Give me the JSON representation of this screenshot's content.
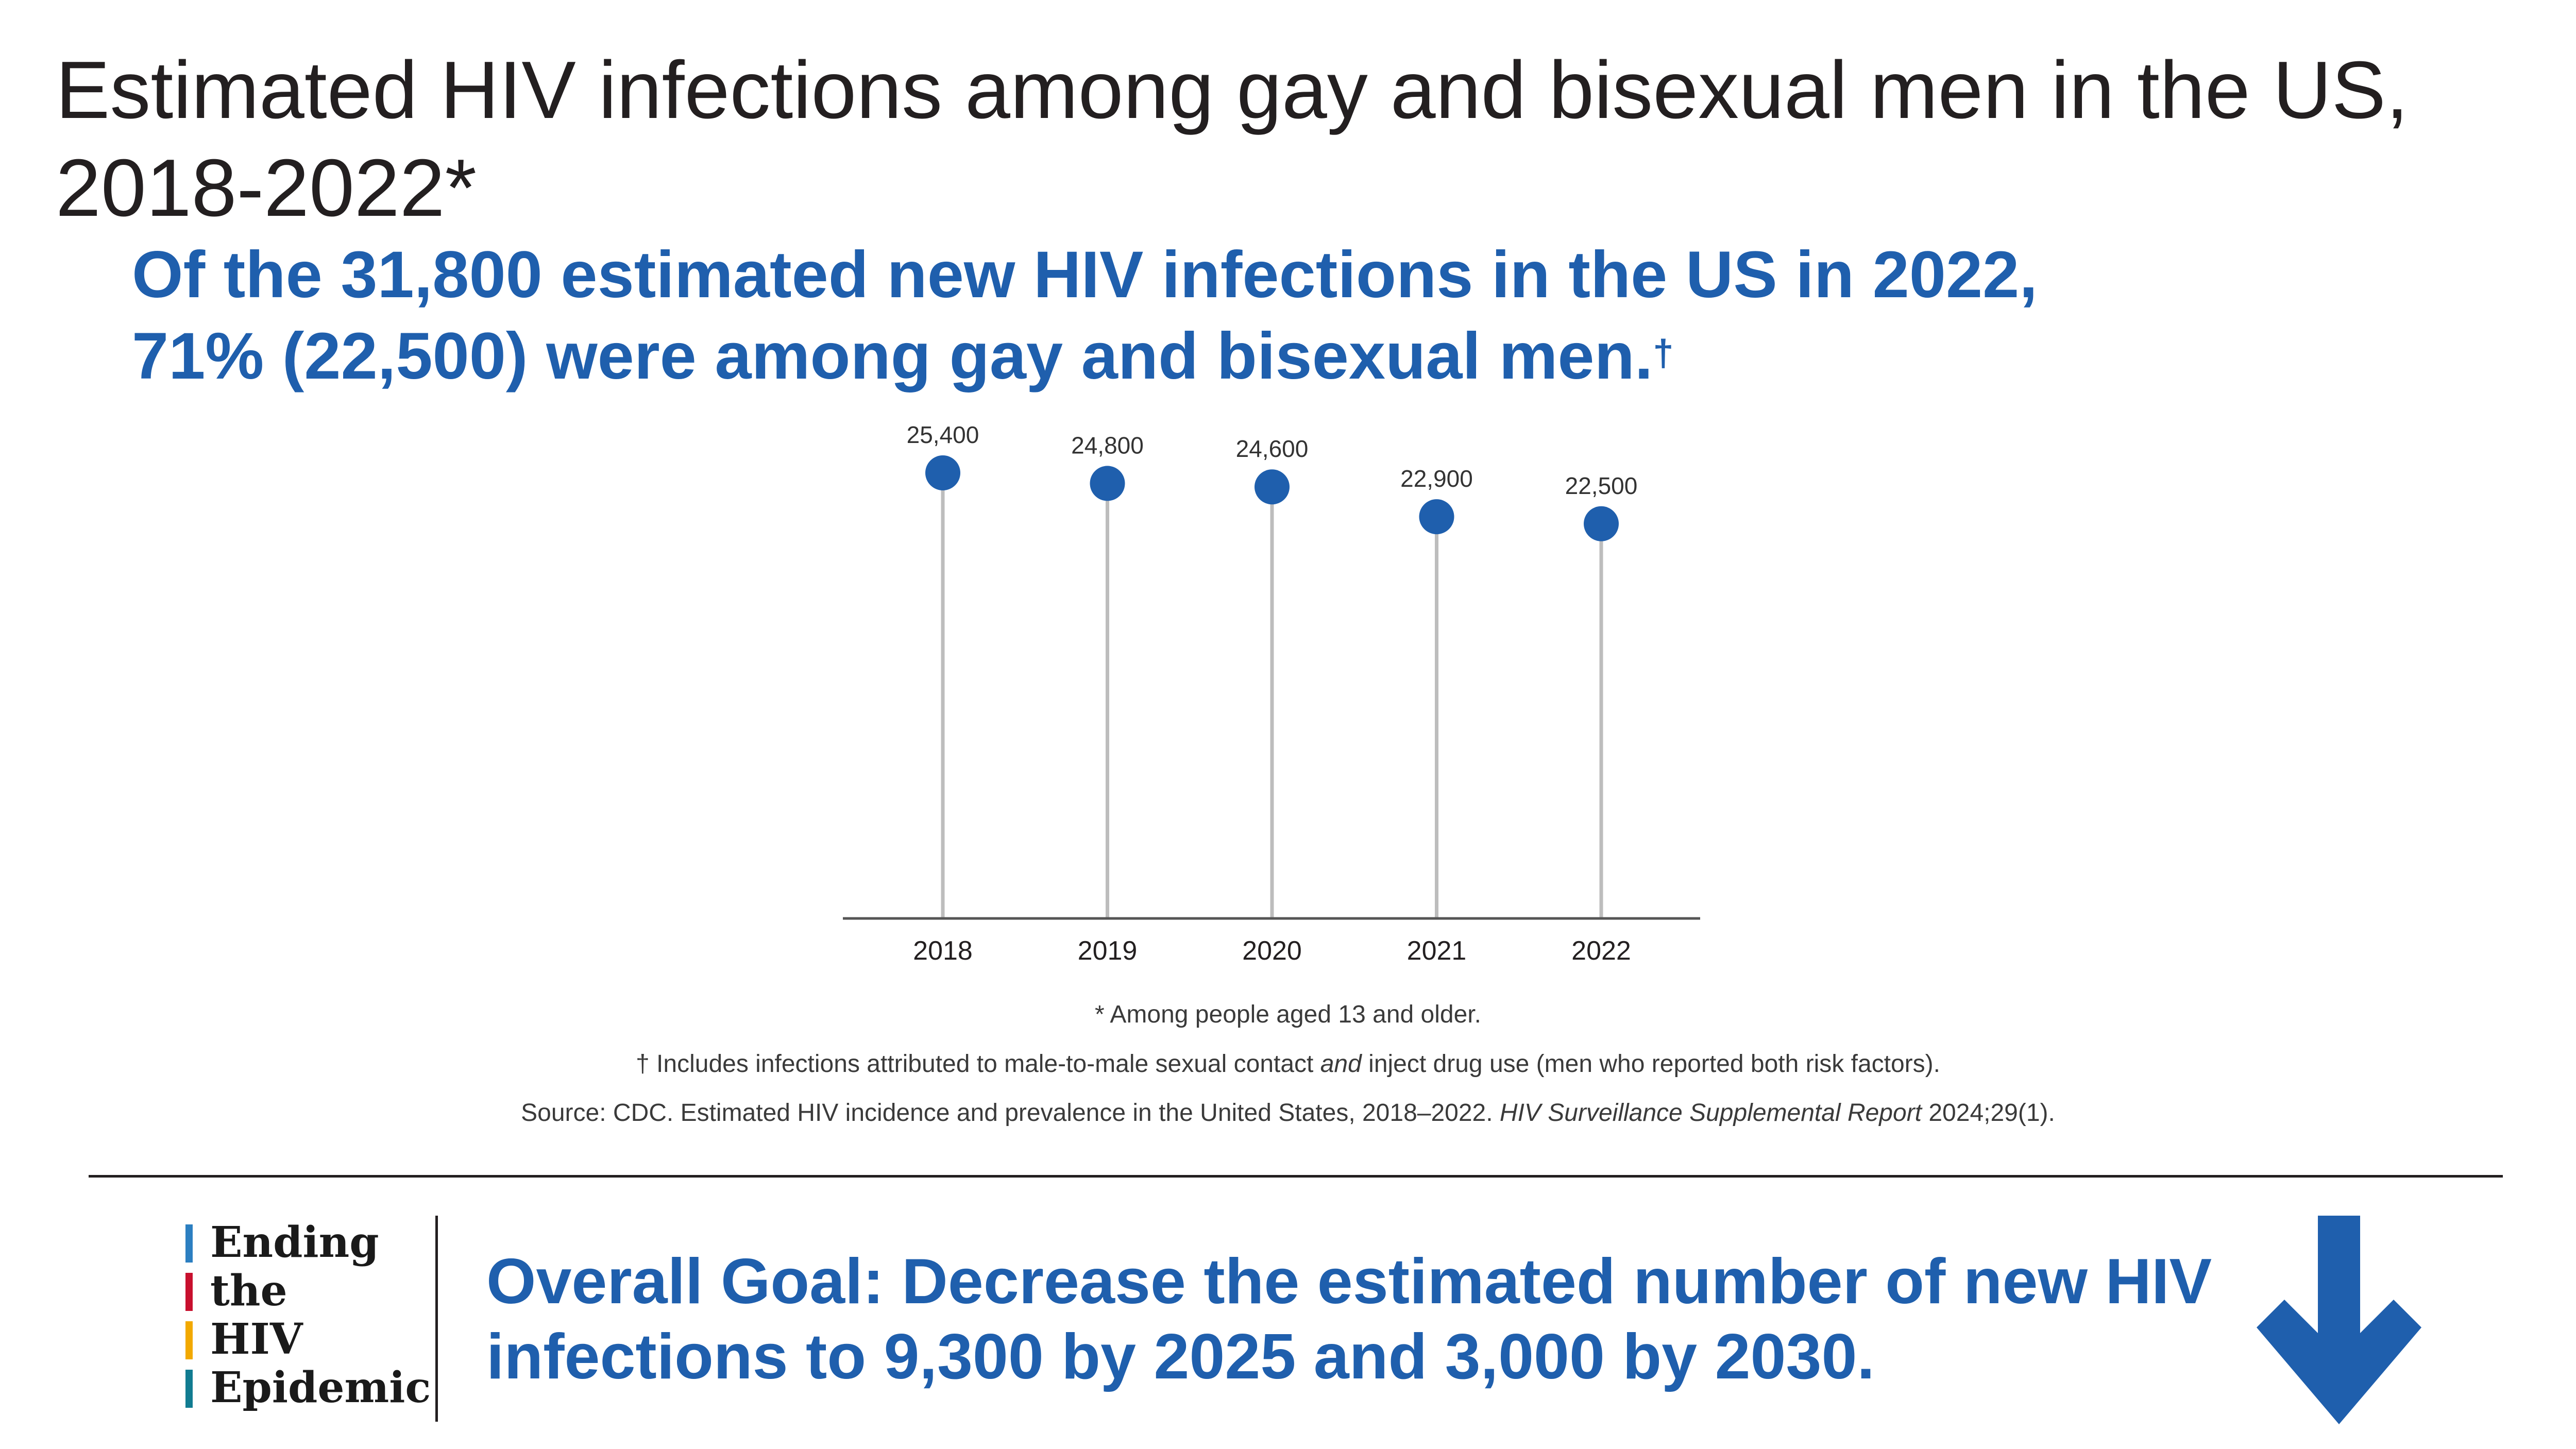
{
  "header": {
    "title": "Estimated HIV infections among gay and bisexual men in the US, 2018-2022*",
    "sub_pre": "Of the ",
    "sub_bold": "31,800 estimated new HIV infections",
    "sub_post": " in the US in 2022,",
    "sub_line2": "71% (22,500) were among gay and bisexual men.",
    "sub_dagger": "†"
  },
  "chart_data": {
    "type": "scatter",
    "style": "lollipop",
    "categories": [
      "2018",
      "2019",
      "2020",
      "2021",
      "2022"
    ],
    "values": [
      25400,
      24800,
      24600,
      22900,
      22500
    ],
    "data_labels": [
      "25,400",
      "24,800",
      "24,600",
      "22,900",
      "22,500"
    ],
    "title": "",
    "xlabel": "",
    "ylabel": "",
    "ylim": [
      0,
      25400
    ],
    "grid": false,
    "colors": {
      "marker": "#1f5fad",
      "stem": "#bdbdbd",
      "axis": "#555555"
    }
  },
  "notes": {
    "age": "* Among people aged 13 and older.",
    "includes_pre": "† Includes infections attributed to male-to-male sexual contact ",
    "includes_em": "and",
    "includes_post": " inject drug use (men who reported both risk factors).",
    "source_pre": "Source: CDC. Estimated HIV incidence and prevalence in the United States, 2018–2022. ",
    "source_em": "HIV Surveillance Supplemental Report",
    "source_post": " 2024;29(1)."
  },
  "logo": {
    "words": [
      "Ending",
      "the",
      "HIV",
      "Epidemic"
    ],
    "bar_colors": [
      "#2c7fc1",
      "#c8102e",
      "#f2a900",
      "#117c91"
    ]
  },
  "goal": {
    "lead": "Overall Goal:",
    "text": " Decrease the estimated number of new HIV infections to 9,300 by 2025 and 3,000 by 2030."
  },
  "icons": {
    "goal_arrow": "arrow-down-icon"
  },
  "colors": {
    "brand_blue": "#1f5fad",
    "text_dark": "#231f20"
  }
}
